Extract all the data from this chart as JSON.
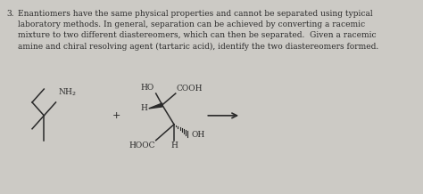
{
  "background_color": "#cccac5",
  "text_color": "#2a2a2a",
  "number": "3.",
  "paragraph_lines": [
    "Enantiomers have the same physical properties and cannot be separated using typical",
    "laboratory methods. In general, separation can be achieved by converting a racemic",
    "mixture to two different diastereomers, which can then be separated.  Given a racemic",
    "amine and chiral resolving agent (tartaric acid), identify the two diastereomers formed."
  ],
  "fontsize": 6.5,
  "fig_width": 4.74,
  "fig_height": 2.18,
  "dpi": 100
}
